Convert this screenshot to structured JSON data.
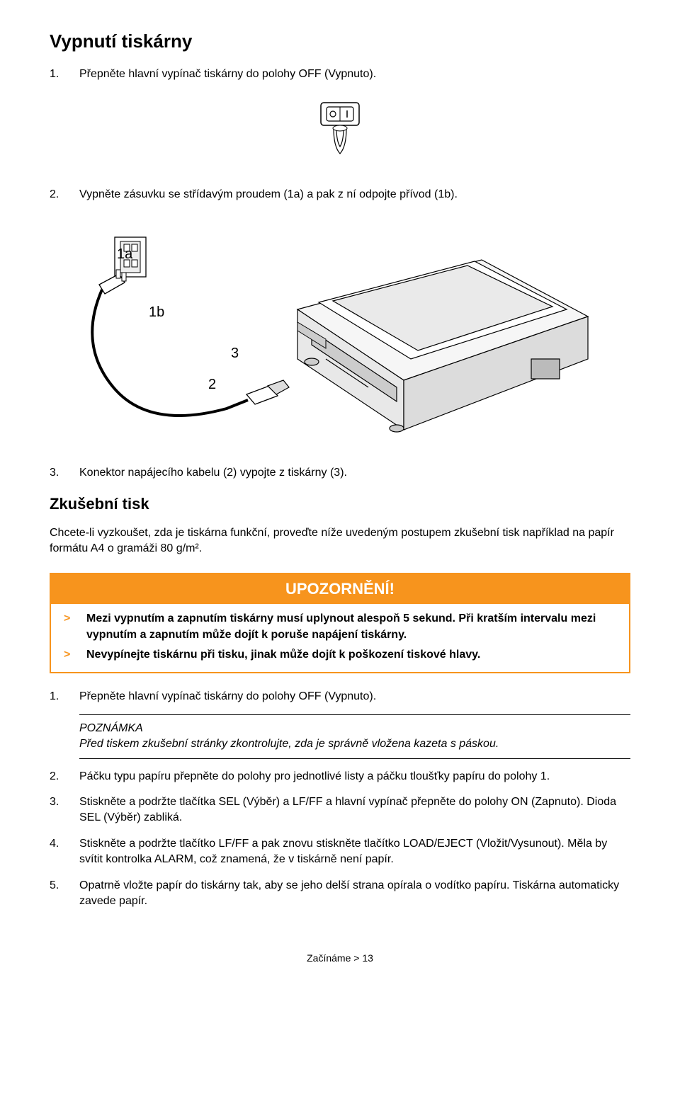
{
  "colors": {
    "warning_border": "#f7941d",
    "warning_header_bg": "#f7941d",
    "warning_header_text": "#ffffff",
    "warn_marker": "#f7941d",
    "text": "#000000",
    "bg": "#ffffff"
  },
  "section1": {
    "title": "Vypnutí tiskárny",
    "step1_num": "1.",
    "step1_text": "Přepněte hlavní vypínač tiskárny do polohy OFF (Vypnuto).",
    "step2_num": "2.",
    "step2_text": "Vypněte zásuvku se střídavým proudem (1a) a pak z ní odpojte přívod (1b).",
    "step3_num": "3.",
    "step3_text": "Konektor napájecího kabelu (2) vypojte z tiskárny (3).",
    "diagram_labels": {
      "a": "1a",
      "b": "1b",
      "c": "3",
      "d": "2"
    }
  },
  "section2": {
    "title": "Zkušební tisk",
    "intro": "Chcete-li vyzkoušet, zda je tiskárna funkční, proveďte níže uvedeným postupem zkušební tisk například na papír formátu A4 o gramáži 80 g/m².",
    "warning": {
      "header": "UPOZORNĚNÍ!",
      "items": [
        {
          "marker": ">",
          "text": "Mezi vypnutím a zapnutím tiskárny musí uplynout alespoň 5 sekund. Při kratším intervalu mezi vypnutím a zapnutím může dojít k poruše napájení tiskárny."
        },
        {
          "marker": ">",
          "text": "Nevypínejte tiskárnu při tisku, jinak může dojít k poškození tiskové hlavy."
        }
      ]
    },
    "steps": [
      {
        "num": "1.",
        "text": "Přepněte hlavní vypínač tiskárny do polohy OFF (Vypnuto)."
      },
      {
        "num": "2.",
        "text": "Páčku typu papíru přepněte do polohy pro jednotlivé listy a páčku tloušťky papíru do polohy 1."
      },
      {
        "num": "3.",
        "text": "Stiskněte a podržte tlačítka SEL (Výběr) a LF/FF a hlavní vypínač přepněte do polohy ON (Zapnuto). Dioda SEL (Výběr) zabliká."
      },
      {
        "num": "4.",
        "text": "Stiskněte a podržte tlačítko LF/FF a pak znovu stiskněte tlačítko LOAD/EJECT (Vložit/Vysunout). Měla by svítit kontrolka ALARM, což znamená, že v tiskárně není papír."
      },
      {
        "num": "5.",
        "text": "Opatrně vložte papír do tiskárny tak, aby se jeho delší strana opírala o vodítko papíru. Tiskárna automaticky zavede papír."
      }
    ],
    "note": {
      "label": "POZNÁMKA",
      "text": "Před tiskem zkušební stránky zkontrolujte, zda je správně vložena kazeta s páskou."
    }
  },
  "footer": "Začínáme > 13"
}
